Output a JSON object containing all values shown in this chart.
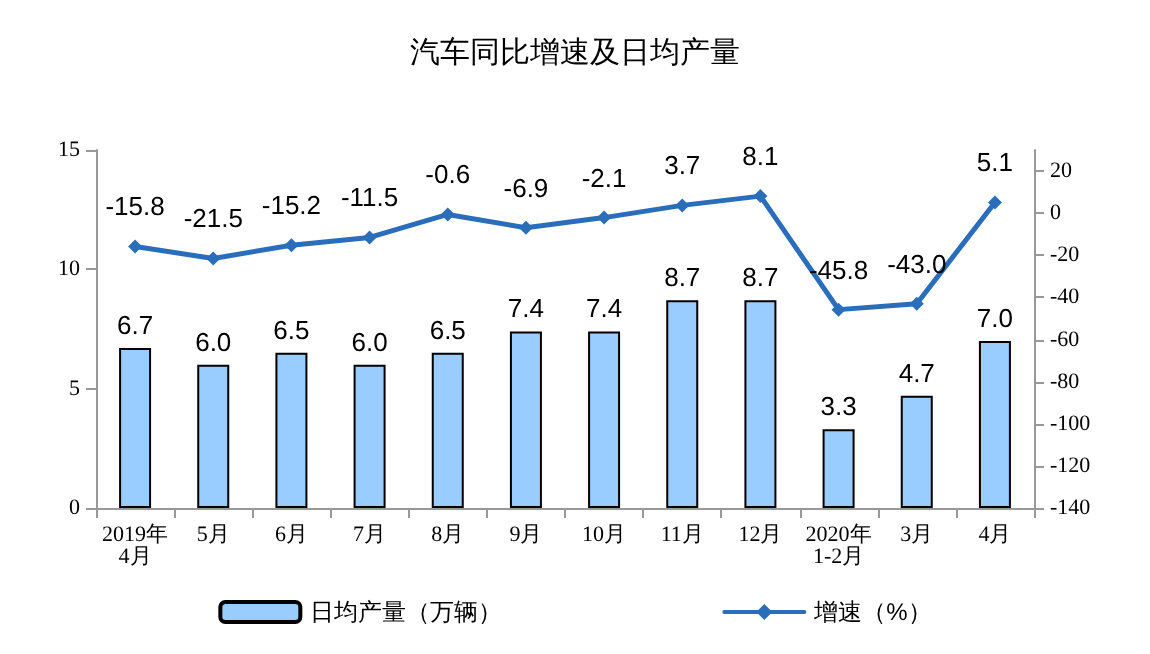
{
  "chart_data": {
    "type": "bar",
    "title": "汽车同比增速及日均产量",
    "categories": [
      "2019年\n4月",
      "5月",
      "6月",
      "7月",
      "8月",
      "9月",
      "10月",
      "11月",
      "12月",
      "2020年\n1-2月",
      "3月",
      "4月"
    ],
    "series": [
      {
        "name": "日均产量（万辆）",
        "color": "#99ccff",
        "values": [
          6.7,
          6.0,
          6.5,
          6.0,
          6.5,
          7.4,
          7.4,
          8.7,
          8.7,
          3.3,
          4.7,
          7.0
        ],
        "value_labels": [
          "6.7",
          "6.0",
          "6.5",
          "6.0",
          "6.5",
          "7.4",
          "7.4",
          "8.7",
          "8.7",
          "3.3",
          "4.7",
          "7.0"
        ]
      },
      {
        "name": "增速（%）",
        "type": "line",
        "axis": "y2",
        "color": "#2a6ebb",
        "values": [
          -15.8,
          -21.5,
          -15.2,
          -11.5,
          -0.6,
          -6.9,
          -2.1,
          3.7,
          8.1,
          -45.8,
          -43.0,
          5.1
        ],
        "value_labels": [
          "-15.8",
          "-21.5",
          "-15.2",
          "-11.5",
          "-0.6",
          "-6.9",
          "-2.1",
          "3.7",
          "8.1",
          "-45.8",
          "-43.0",
          "5.1"
        ]
      }
    ],
    "ylim": [
      0,
      15
    ],
    "yticks": [
      0,
      5,
      10,
      15
    ],
    "y2lim": [
      -140,
      30
    ],
    "y2ticks": [
      -140,
      -120,
      -100,
      -80,
      -60,
      -40,
      -20,
      0,
      20
    ],
    "grid": false,
    "legend": "bottom",
    "marker": "diamond",
    "line_style": "solid"
  }
}
